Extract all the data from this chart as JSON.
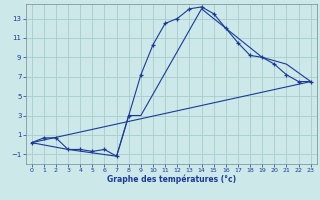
{
  "xlabel": "Graphe des températures (°c)",
  "xlim": [
    -0.5,
    23.5
  ],
  "ylim": [
    -2.0,
    14.5
  ],
  "xticks": [
    0,
    1,
    2,
    3,
    4,
    5,
    6,
    7,
    8,
    9,
    10,
    11,
    12,
    13,
    14,
    15,
    16,
    17,
    18,
    19,
    20,
    21,
    22,
    23
  ],
  "yticks": [
    -1,
    1,
    3,
    5,
    7,
    9,
    11,
    13
  ],
  "bg_color": "#cce8e8",
  "grid_color": "#aacccc",
  "line_color": "#1a3a9a",
  "curve1_x": [
    0,
    1,
    2,
    3,
    4,
    5,
    6,
    7,
    8,
    9,
    10,
    11,
    12,
    13,
    14,
    15,
    16,
    17,
    18,
    19,
    20,
    21,
    22,
    23
  ],
  "curve1_y": [
    0.2,
    0.7,
    0.7,
    -0.5,
    -0.5,
    -0.7,
    -0.5,
    -1.2,
    3.0,
    7.2,
    10.3,
    12.5,
    13.0,
    14.0,
    14.2,
    13.5,
    12.0,
    10.5,
    9.2,
    9.0,
    8.3,
    7.2,
    6.5,
    6.5
  ],
  "curve2_x": [
    0,
    23
  ],
  "curve2_y": [
    0.2,
    6.5
  ],
  "curve3_x": [
    0,
    3,
    7,
    8,
    9,
    14,
    19,
    21,
    23
  ],
  "curve3_y": [
    0.2,
    -0.5,
    -1.2,
    3.0,
    3.0,
    14.0,
    9.0,
    8.3,
    6.5
  ]
}
